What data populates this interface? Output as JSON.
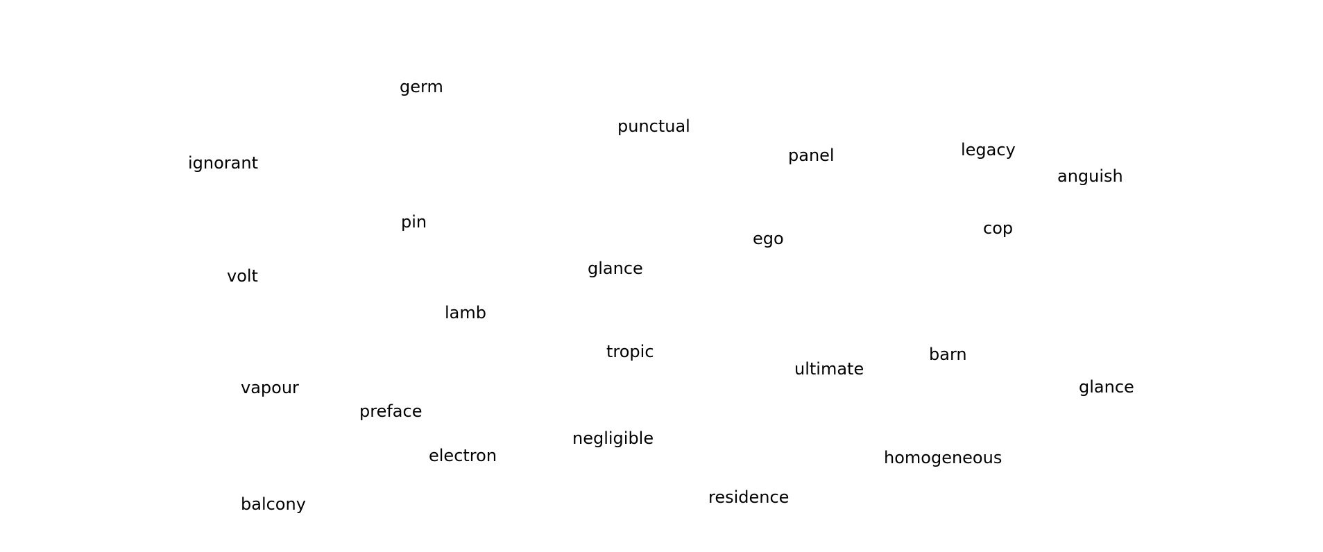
{
  "words": [
    "germ",
    "punctual",
    "ignorant",
    "panel",
    "legacy",
    "anguish",
    "pin",
    "ego",
    "cop",
    "volt",
    "glance",
    "lamb",
    "tropic",
    "barn",
    "ultimate",
    "vapour",
    "glance",
    "preface",
    "negligible",
    "electron",
    "homogeneous",
    "balcony",
    "residence"
  ],
  "colors": {
    "background": "#ffffff",
    "text": "#000000"
  }
}
